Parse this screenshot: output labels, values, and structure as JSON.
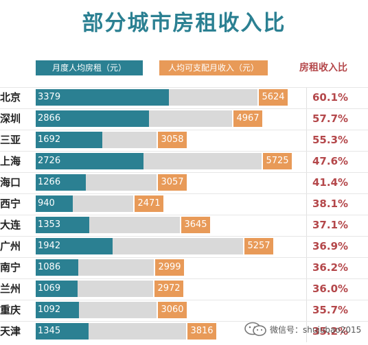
{
  "title": "部分城市房租收入比",
  "legend": {
    "rent": "月度人均房租（元）",
    "income": "人均可支配月收入（元）",
    "ratio": "房租收入比"
  },
  "colors": {
    "title": "#2b8092",
    "rent_bar": "#2b8092",
    "income_bar": "#d9d9d9",
    "income_label": "#e89a58",
    "ratio_text": "#b4474a"
  },
  "watermark": {
    "text": "微信号：shujubao2015",
    "icon": "wechat-icon"
  },
  "chart_data": {
    "type": "bar",
    "orientation": "horizontal",
    "title": "部分城市房租收入比",
    "categories": [
      "北京",
      "深圳",
      "三亚",
      "上海",
      "海口",
      "西宁",
      "大连",
      "广州",
      "南宁",
      "兰州",
      "重庆",
      "天津"
    ],
    "series": [
      {
        "name": "月度人均房租（元）",
        "values": [
          3379,
          2866,
          1692,
          2726,
          1266,
          940,
          1353,
          1942,
          1086,
          1069,
          1092,
          1345
        ]
      },
      {
        "name": "人均可支配月收入（元）",
        "values": [
          5624,
          4967,
          3058,
          5725,
          3057,
          2471,
          3645,
          5257,
          2999,
          2972,
          3060,
          3816
        ]
      }
    ],
    "ratios": [
      "60.1%",
      "57.7%",
      "55.3%",
      "47.6%",
      "41.4%",
      "38.1%",
      "37.1%",
      "36.9%",
      "36.2%",
      "36.0%",
      "35.7%",
      "35.2%"
    ],
    "grid": false,
    "legend_position": "top"
  }
}
